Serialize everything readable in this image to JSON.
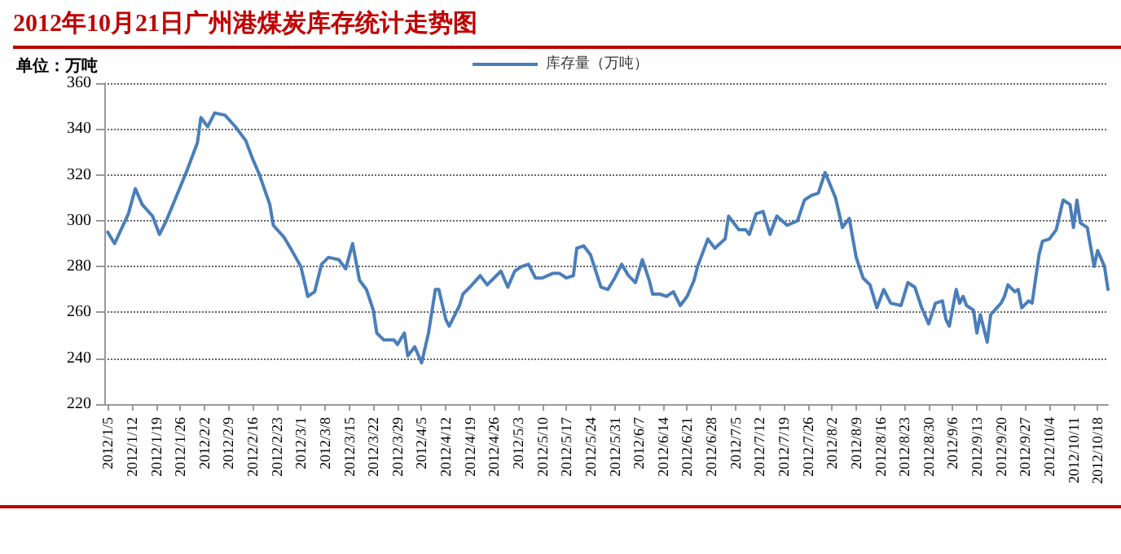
{
  "chart_data": {
    "type": "line",
    "title": "2012年10月21日广州港煤炭库存统计走势图",
    "ylabel": "单位：万吨",
    "legend": "top",
    "grid": "y",
    "marker": "none",
    "line_style": "solid",
    "ylim": [
      220,
      360
    ],
    "yticks": [
      220,
      240,
      260,
      280,
      300,
      320,
      340,
      360
    ],
    "xlim": [
      "2012-01-04",
      "2012-10-21"
    ],
    "xticks": [
      {
        "value": "2012-01-05",
        "label": "2012/1/5"
      },
      {
        "value": "2012-01-12",
        "label": "2012/1/12"
      },
      {
        "value": "2012-01-19",
        "label": "2012/1/19"
      },
      {
        "value": "2012-01-26",
        "label": "2012/1/26"
      },
      {
        "value": "2012-02-02",
        "label": "2012/2/2"
      },
      {
        "value": "2012-02-09",
        "label": "2012/2/9"
      },
      {
        "value": "2012-02-16",
        "label": "2012/2/16"
      },
      {
        "value": "2012-02-23",
        "label": "2012/2/23"
      },
      {
        "value": "2012-03-01",
        "label": "2012/3/1"
      },
      {
        "value": "2012-03-08",
        "label": "2012/3/8"
      },
      {
        "value": "2012-03-15",
        "label": "2012/3/15"
      },
      {
        "value": "2012-03-22",
        "label": "2012/3/22"
      },
      {
        "value": "2012-03-29",
        "label": "2012/3/29"
      },
      {
        "value": "2012-04-05",
        "label": "2012/4/5"
      },
      {
        "value": "2012-04-12",
        "label": "2012/4/12"
      },
      {
        "value": "2012-04-19",
        "label": "2012/4/19"
      },
      {
        "value": "2012-04-26",
        "label": "2012/4/26"
      },
      {
        "value": "2012-05-03",
        "label": "2012/5/3"
      },
      {
        "value": "2012-05-10",
        "label": "2012/5/10"
      },
      {
        "value": "2012-05-17",
        "label": "2012/5/17"
      },
      {
        "value": "2012-05-24",
        "label": "2012/5/24"
      },
      {
        "value": "2012-05-31",
        "label": "2012/5/31"
      },
      {
        "value": "2012-06-07",
        "label": "2012/6/7"
      },
      {
        "value": "2012-06-14",
        "label": "2012/6/14"
      },
      {
        "value": "2012-06-21",
        "label": "2012/6/21"
      },
      {
        "value": "2012-06-28",
        "label": "2012/6/28"
      },
      {
        "value": "2012-07-05",
        "label": "2012/7/5"
      },
      {
        "value": "2012-07-12",
        "label": "2012/7/12"
      },
      {
        "value": "2012-07-19",
        "label": "2012/7/19"
      },
      {
        "value": "2012-07-26",
        "label": "2012/7/26"
      },
      {
        "value": "2012-08-02",
        "label": "2012/8/2"
      },
      {
        "value": "2012-08-09",
        "label": "2012/8/9"
      },
      {
        "value": "2012-08-16",
        "label": "2012/8/16"
      },
      {
        "value": "2012-08-23",
        "label": "2012/8/23"
      },
      {
        "value": "2012-08-30",
        "label": "2012/8/30"
      },
      {
        "value": "2012-09-06",
        "label": "2012/9/6"
      },
      {
        "value": "2012-09-13",
        "label": "2012/9/13"
      },
      {
        "value": "2012-09-20",
        "label": "2012/9/20"
      },
      {
        "value": "2012-09-27",
        "label": "2012/9/27"
      },
      {
        "value": "2012-10-04",
        "label": "2012/10/4"
      },
      {
        "value": "2012-10-11",
        "label": "2012/10/11"
      },
      {
        "value": "2012-10-18",
        "label": "2012/10/18"
      }
    ],
    "x": [
      "2012-01-05",
      "2012-01-07",
      "2012-01-11",
      "2012-01-13",
      "2012-01-15",
      "2012-01-18",
      "2012-01-20",
      "2012-01-22",
      "2012-01-25",
      "2012-01-28",
      "2012-01-31",
      "2012-02-01",
      "2012-02-03",
      "2012-02-05",
      "2012-02-08",
      "2012-02-11",
      "2012-02-14",
      "2012-02-16",
      "2012-02-18",
      "2012-02-21",
      "2012-02-22",
      "2012-02-25",
      "2012-02-27",
      "2012-03-01",
      "2012-03-03",
      "2012-03-05",
      "2012-03-07",
      "2012-03-09",
      "2012-03-12",
      "2012-03-14",
      "2012-03-16",
      "2012-03-18",
      "2012-03-20",
      "2012-03-22",
      "2012-03-23",
      "2012-03-25",
      "2012-03-28",
      "2012-03-29",
      "2012-03-31",
      "2012-04-01",
      "2012-04-03",
      "2012-04-05",
      "2012-04-07",
      "2012-04-09",
      "2012-04-10",
      "2012-04-12",
      "2012-04-13",
      "2012-04-16",
      "2012-04-17",
      "2012-04-19",
      "2012-04-22",
      "2012-04-24",
      "2012-04-26",
      "2012-04-28",
      "2012-04-30",
      "2012-05-02",
      "2012-05-04",
      "2012-05-06",
      "2012-05-08",
      "2012-05-10",
      "2012-05-13",
      "2012-05-15",
      "2012-05-17",
      "2012-05-19",
      "2012-05-20",
      "2012-05-22",
      "2012-05-24",
      "2012-05-27",
      "2012-05-29",
      "2012-05-31",
      "2012-06-02",
      "2012-06-04",
      "2012-06-06",
      "2012-06-08",
      "2012-06-10",
      "2012-06-11",
      "2012-06-13",
      "2012-06-15",
      "2012-06-17",
      "2012-06-19",
      "2012-06-21",
      "2012-06-23",
      "2012-06-24",
      "2012-06-27",
      "2012-06-29",
      "2012-07-02",
      "2012-07-03",
      "2012-07-06",
      "2012-07-08",
      "2012-07-09",
      "2012-07-11",
      "2012-07-13",
      "2012-07-15",
      "2012-07-17",
      "2012-07-20",
      "2012-07-23",
      "2012-07-25",
      "2012-07-27",
      "2012-07-29",
      "2012-07-31",
      "2012-08-03",
      "2012-08-05",
      "2012-08-07",
      "2012-08-09",
      "2012-08-11",
      "2012-08-13",
      "2012-08-15",
      "2012-08-17",
      "2012-08-19",
      "2012-08-22",
      "2012-08-24",
      "2012-08-26",
      "2012-08-28",
      "2012-08-30",
      "2012-09-01",
      "2012-09-03",
      "2012-09-04",
      "2012-09-05",
      "2012-09-07",
      "2012-09-08",
      "2012-09-09",
      "2012-09-10",
      "2012-09-12",
      "2012-09-13",
      "2012-09-14",
      "2012-09-16",
      "2012-09-17",
      "2012-09-20",
      "2012-09-21",
      "2012-09-22",
      "2012-09-24",
      "2012-09-25",
      "2012-09-26",
      "2012-09-28",
      "2012-09-29",
      "2012-10-01",
      "2012-10-02",
      "2012-10-04",
      "2012-10-06",
      "2012-10-08",
      "2012-10-10",
      "2012-10-11",
      "2012-10-12",
      "2012-10-13",
      "2012-10-15",
      "2012-10-17",
      "2012-10-18",
      "2012-10-20",
      "2012-10-21"
    ],
    "series": [
      {
        "name": "库存量（万吨）",
        "color": "#4a7ebb",
        "values": [
          295,
          290,
          303,
          314,
          307,
          302,
          294,
          300,
          311,
          322,
          334,
          345,
          341,
          347,
          346,
          341,
          335,
          327,
          320,
          307,
          298,
          293,
          288,
          280,
          267,
          269,
          281,
          284,
          283,
          279,
          290,
          274,
          270,
          261,
          251,
          248,
          248,
          246,
          251,
          241,
          245,
          238,
          251,
          270,
          270,
          257,
          254,
          263,
          268,
          271,
          276,
          272,
          275,
          278,
          271,
          278,
          280,
          281,
          275,
          275,
          277,
          277,
          275,
          276,
          288,
          289,
          285,
          271,
          270,
          275,
          281,
          276,
          273,
          283,
          274,
          268,
          268,
          267,
          269,
          263,
          267,
          274,
          280,
          292,
          288,
          292,
          302,
          296,
          296,
          294,
          303,
          304,
          294,
          302,
          298,
          300,
          309,
          311,
          312,
          321,
          310,
          297,
          301,
          284,
          275,
          272,
          262,
          270,
          264,
          263,
          273,
          271,
          262,
          255,
          264,
          265,
          257,
          254,
          270,
          264,
          267,
          263,
          261,
          251,
          259,
          247,
          259,
          264,
          267,
          272,
          269,
          270,
          262,
          265,
          264,
          285,
          291,
          292,
          296,
          309,
          307,
          297,
          309,
          299,
          297,
          280,
          287,
          280,
          270
        ]
      }
    ]
  }
}
